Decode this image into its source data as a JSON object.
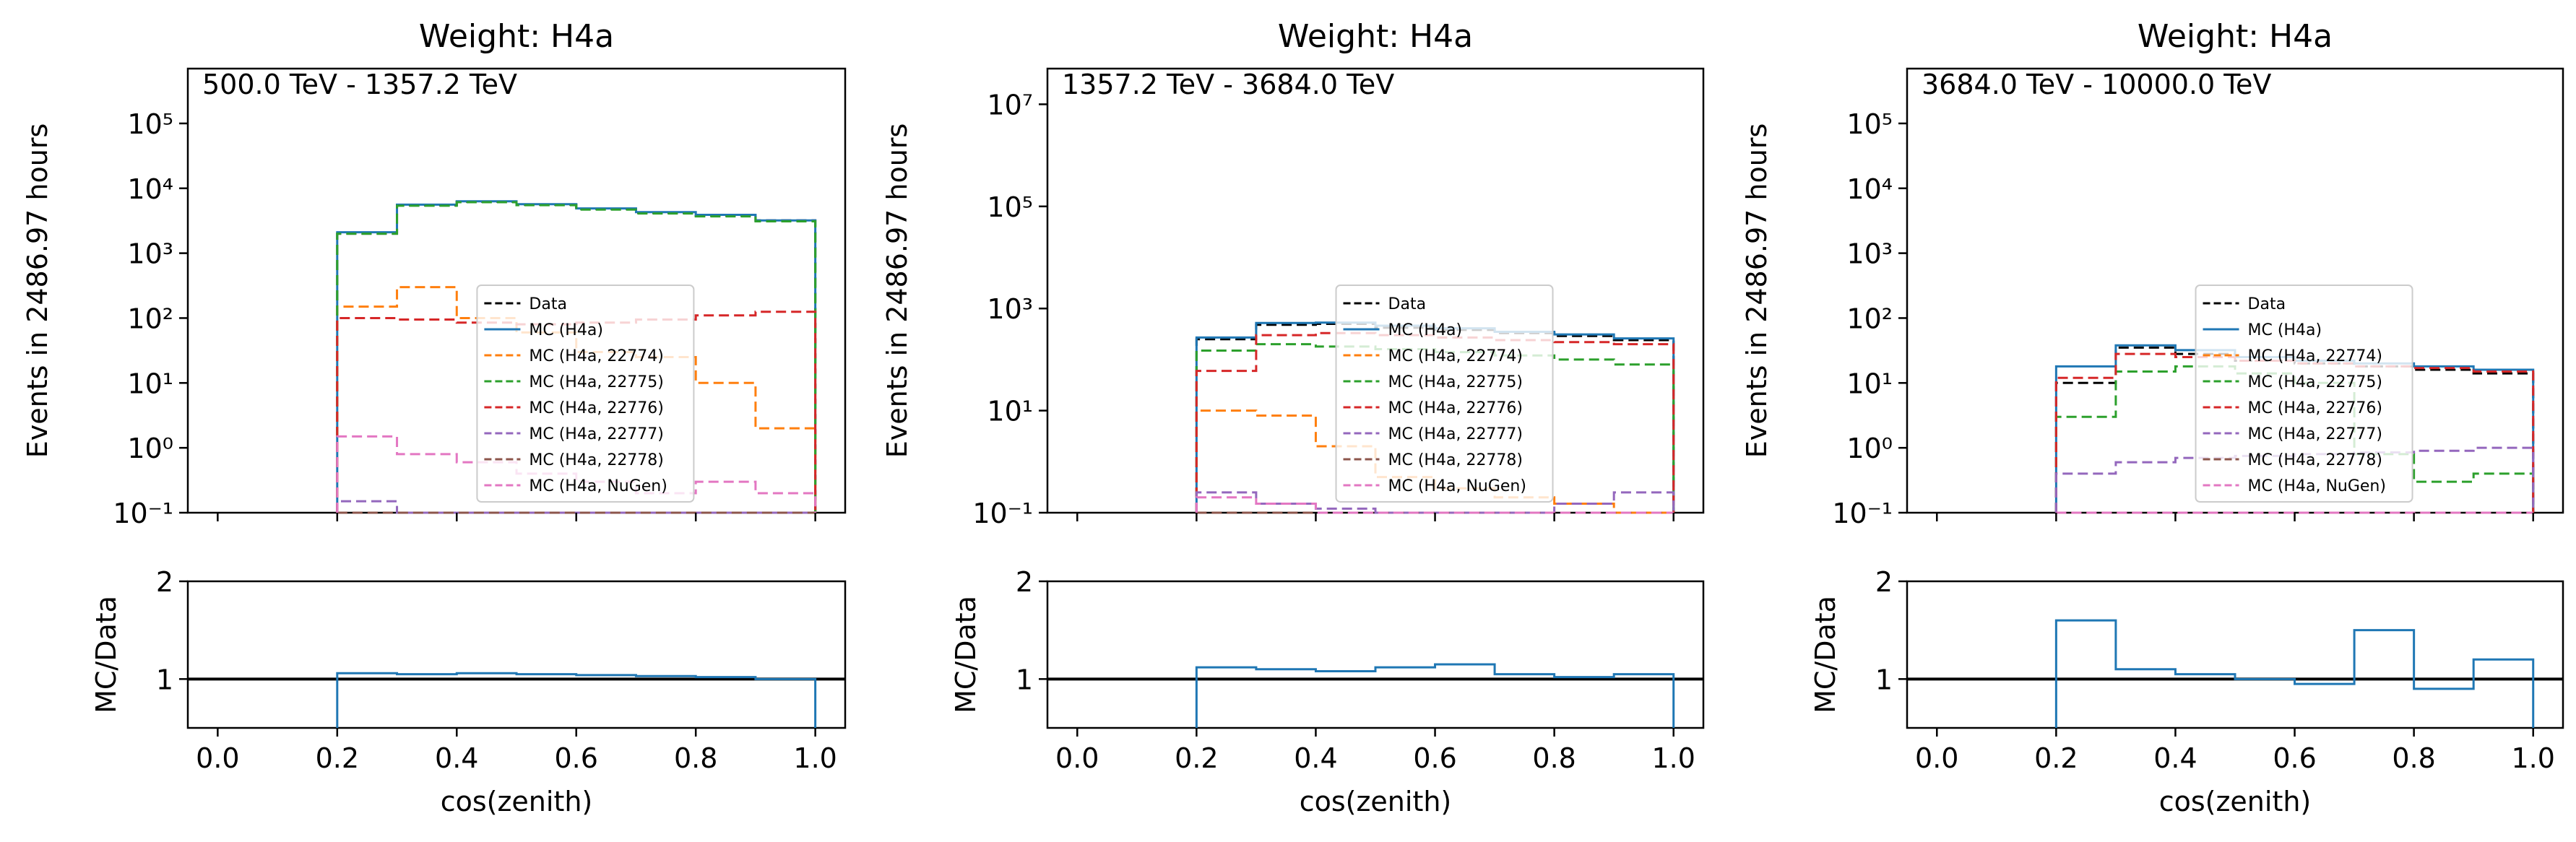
{
  "figure": {
    "shared_xlabel": "cos(zenith)",
    "upper_ylabel": "Events in 2486.97 hours",
    "lower_ylabel": "MC/Data"
  },
  "legend": {
    "entries": [
      {
        "label": "Data",
        "color": "#000000",
        "style": "dashed"
      },
      {
        "label": "MC (H4a)",
        "color": "#1f77b4",
        "style": "solid"
      },
      {
        "label": "MC (H4a, 22774)",
        "color": "#ff7f0e",
        "style": "dashed"
      },
      {
        "label": "MC (H4a, 22775)",
        "color": "#2ca02c",
        "style": "dashed"
      },
      {
        "label": "MC (H4a, 22776)",
        "color": "#d62728",
        "style": "dashed"
      },
      {
        "label": "MC (H4a, 22777)",
        "color": "#9467bd",
        "style": "dashed"
      },
      {
        "label": "MC (H4a, 22778)",
        "color": "#8c564b",
        "style": "dashed"
      },
      {
        "label": "MC (H4a, NuGen)",
        "color": "#e377c2",
        "style": "dashed"
      }
    ]
  },
  "chart_data": [
    {
      "type": "line",
      "title": "Weight: H4a",
      "annotation": "500.0 TeV - 1357.2 TeV",
      "xlabel": "cos(zenith)",
      "ylabel": "Events in 2486.97 hours",
      "yscale": "log",
      "xlim": [
        -0.05,
        1.05
      ],
      "ylim": [
        0.1,
        700000
      ],
      "yticks": [
        "10⁻¹",
        "10⁰",
        "10¹",
        "10²",
        "10³",
        "10⁴",
        "10⁵"
      ],
      "x_bin_edges": [
        0.2,
        0.3,
        0.4,
        0.5,
        0.6,
        0.7,
        0.8,
        0.9,
        1.0
      ],
      "series": [
        {
          "name": "Data",
          "values": [
            2000,
            5500,
            6200,
            5600,
            4800,
            4200,
            3800,
            3200
          ]
        },
        {
          "name": "MC (H4a)",
          "values": [
            2100,
            5600,
            6300,
            5700,
            4900,
            4300,
            3900,
            3200
          ]
        },
        {
          "name": "MC (H4a, 22774)",
          "values": [
            150,
            300,
            100,
            60,
            30,
            25,
            10,
            2
          ]
        },
        {
          "name": "MC (H4a, 22775)",
          "values": [
            2000,
            5400,
            6100,
            5500,
            4700,
            4100,
            3700,
            3100
          ]
        },
        {
          "name": "MC (H4a, 22776)",
          "values": [
            100,
            95,
            85,
            80,
            85,
            95,
            110,
            125
          ]
        },
        {
          "name": "MC (H4a, 22777)",
          "values": [
            0.15,
            0.1,
            0.1,
            0.1,
            0.1,
            0.1,
            0.1,
            0.1
          ]
        },
        {
          "name": "MC (H4a, 22778)",
          "values": [
            0.1,
            0.1,
            0.1,
            0.1,
            0.1,
            0.1,
            0.1,
            0.1
          ]
        },
        {
          "name": "MC (H4a, NuGen)",
          "values": [
            1.5,
            0.8,
            0.6,
            0.4,
            0.3,
            0.2,
            0.3,
            0.2
          ]
        }
      ],
      "ratio": {
        "ylabel": "MC/Data",
        "ylim": [
          0.5,
          2
        ],
        "values": [
          1.06,
          1.05,
          1.06,
          1.05,
          1.04,
          1.03,
          1.02,
          1.0
        ]
      }
    },
    {
      "type": "line",
      "title": "Weight: H4a",
      "annotation": "1357.2 TeV - 3684.0 TeV",
      "xlabel": "cos(zenith)",
      "ylabel": "Events in 2486.97 hours",
      "yscale": "log",
      "xlim": [
        -0.05,
        1.05
      ],
      "ylim": [
        0.1,
        50000000
      ],
      "yticks": [
        "10⁻¹",
        "10¹",
        "10³",
        "10⁵",
        "10⁷"
      ],
      "x_bin_edges": [
        0.2,
        0.3,
        0.4,
        0.5,
        0.6,
        0.7,
        0.8,
        0.9,
        1.0
      ],
      "series": [
        {
          "name": "Data",
          "values": [
            250,
            480,
            500,
            420,
            380,
            330,
            290,
            240
          ]
        },
        {
          "name": "MC (H4a)",
          "values": [
            270,
            520,
            530,
            460,
            410,
            350,
            310,
            260
          ]
        },
        {
          "name": "MC (H4a, 22774)",
          "values": [
            10,
            8,
            2,
            0.5,
            0.3,
            0.2,
            0.15,
            0.1
          ]
        },
        {
          "name": "MC (H4a, 22775)",
          "values": [
            150,
            200,
            180,
            160,
            140,
            120,
            100,
            80
          ]
        },
        {
          "name": "MC (H4a, 22776)",
          "values": [
            60,
            300,
            330,
            300,
            270,
            240,
            220,
            200
          ]
        },
        {
          "name": "MC (H4a, 22777)",
          "values": [
            0.25,
            0.15,
            0.12,
            0.1,
            0.1,
            0.1,
            0.15,
            0.25
          ]
        },
        {
          "name": "MC (H4a, 22778)",
          "values": [
            0.1,
            0.1,
            0.1,
            0.1,
            0.1,
            0.1,
            0.1,
            0.1
          ]
        },
        {
          "name": "MC (H4a, NuGen)",
          "values": [
            0.2,
            0.15,
            0.1,
            0.1,
            0.1,
            0.1,
            0.1,
            0.1
          ]
        }
      ],
      "ratio": {
        "ylabel": "MC/Data",
        "ylim": [
          0.5,
          2
        ],
        "values": [
          1.12,
          1.1,
          1.08,
          1.12,
          1.15,
          1.05,
          1.02,
          1.05
        ]
      }
    },
    {
      "type": "line",
      "title": "Weight: H4a",
      "annotation": "3684.0 TeV - 10000.0 TeV",
      "xlabel": "cos(zenith)",
      "ylabel": "Events in 2486.97 hours",
      "yscale": "log",
      "xlim": [
        -0.05,
        1.05
      ],
      "ylim": [
        0.1,
        700000
      ],
      "yticks": [
        "10⁻¹",
        "10⁰",
        "10¹",
        "10²",
        "10³",
        "10⁴",
        "10⁵"
      ],
      "x_bin_edges": [
        0.2,
        0.3,
        0.4,
        0.5,
        0.6,
        0.7,
        0.8,
        0.9,
        1.0
      ],
      "series": [
        {
          "name": "Data",
          "values": [
            10,
            35,
            28,
            22,
            20,
            18,
            16,
            14
          ]
        },
        {
          "name": "MC (H4a)",
          "values": [
            18,
            38,
            32,
            25,
            22,
            20,
            18,
            16
          ]
        },
        {
          "name": "MC (H4a, 22774)",
          "values": [
            0.1,
            0.1,
            0.1,
            0.1,
            0.1,
            0.1,
            0.1,
            0.1
          ]
        },
        {
          "name": "MC (H4a, 22775)",
          "values": [
            3,
            15,
            18,
            14,
            10,
            0.8,
            0.3,
            0.4
          ]
        },
        {
          "name": "MC (H4a, 22776)",
          "values": [
            12,
            28,
            25,
            22,
            20,
            18,
            17,
            15
          ]
        },
        {
          "name": "MC (H4a, 22777)",
          "values": [
            0.4,
            0.6,
            0.7,
            0.75,
            0.8,
            0.85,
            0.9,
            1.0
          ]
        },
        {
          "name": "MC (H4a, 22778)",
          "values": [
            0.1,
            0.1,
            0.1,
            0.1,
            0.1,
            0.1,
            0.1,
            0.1
          ]
        },
        {
          "name": "MC (H4a, NuGen)",
          "values": [
            0.1,
            0.1,
            0.1,
            0.1,
            0.1,
            0.1,
            0.1,
            0.1
          ]
        }
      ],
      "ratio": {
        "ylabel": "MC/Data",
        "ylim": [
          0.5,
          2
        ],
        "values": [
          1.6,
          1.1,
          1.05,
          1.0,
          0.95,
          1.5,
          0.9,
          1.2
        ]
      }
    }
  ]
}
